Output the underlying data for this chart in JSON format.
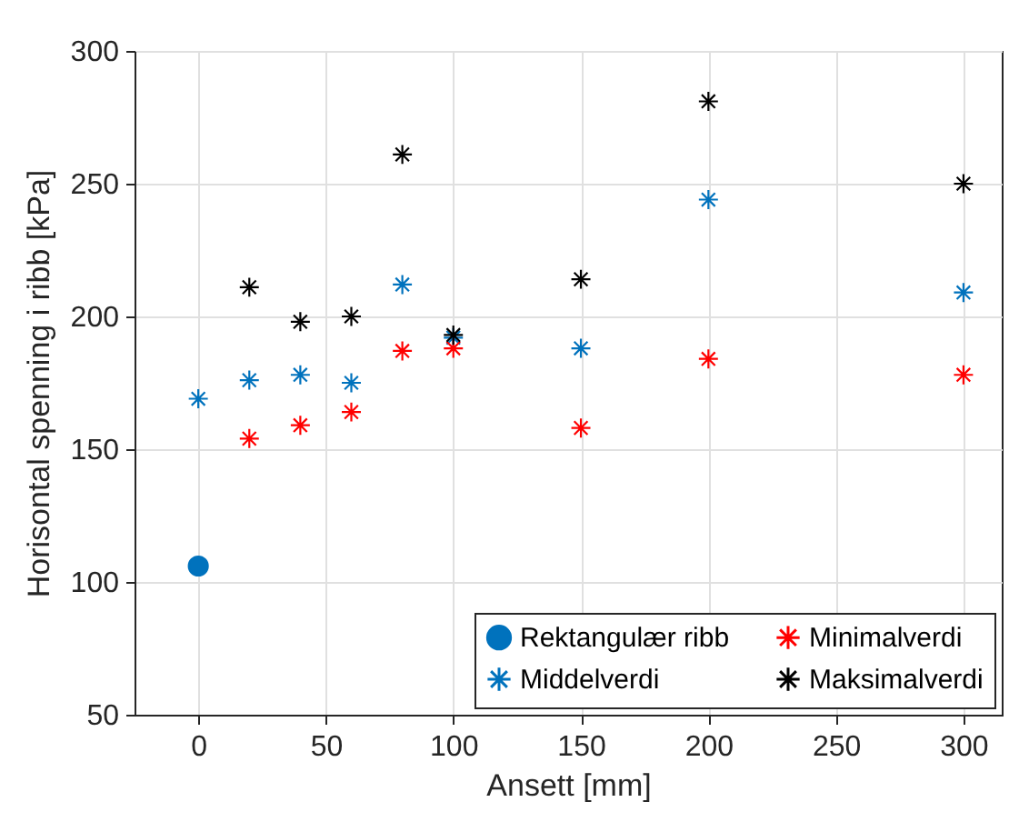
{
  "chart_data": {
    "type": "scatter",
    "xlabel": "Ansett [mm]",
    "ylabel": "Horisontal spenning i ribb [kPa]",
    "xlim": [
      -25,
      315
    ],
    "xticks": [
      0,
      50,
      100,
      150,
      200,
      250,
      300
    ],
    "ylim": [
      50,
      300
    ],
    "yticks": [
      50,
      100,
      150,
      200,
      250,
      300
    ],
    "grid": true,
    "legend": "bottom right",
    "series": [
      {
        "name": "Rektangulær ribb",
        "color": "#0072bd",
        "marker": "circle",
        "x": [
          0
        ],
        "values": [
          106
        ]
      },
      {
        "name": "Middelverdi",
        "color": "#0072bd",
        "marker": "cross",
        "x": [
          0,
          20,
          40,
          60,
          80,
          100,
          150,
          200,
          300
        ],
        "values": [
          169,
          176,
          178,
          175,
          212,
          192,
          188,
          244,
          209
        ]
      },
      {
        "name": "Minimalverdi",
        "color": "#ff0000",
        "marker": "cross",
        "x": [
          20,
          40,
          60,
          80,
          100,
          150,
          200,
          300
        ],
        "values": [
          154,
          159,
          164,
          187,
          188,
          158,
          184,
          178
        ]
      },
      {
        "name": "Maksimalverdi",
        "color": "#000000",
        "marker": "cross",
        "x": [
          20,
          40,
          60,
          80,
          100,
          150,
          200,
          300
        ],
        "values": [
          211,
          198,
          200,
          261,
          193,
          214,
          281,
          250
        ]
      }
    ]
  }
}
